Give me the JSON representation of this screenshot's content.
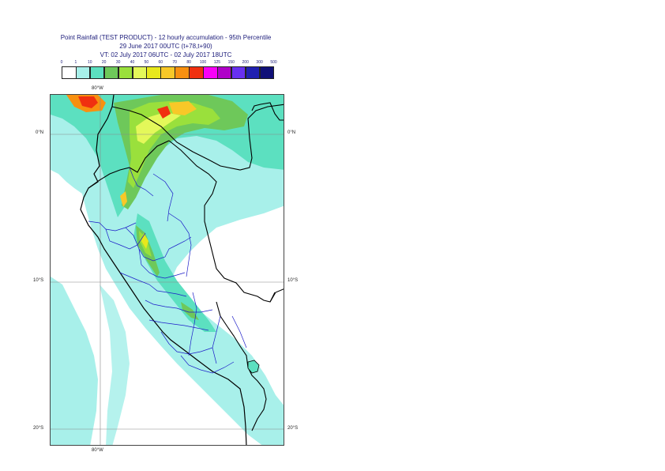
{
  "title": {
    "line1": "Point Rainfall (TEST PRODUCT) - 12 hourly accumulation - 95th Percentile",
    "line2": "29 June 2017 00UTC (t+78,t+90)",
    "line3": "VT: 02 July 2017 06UTC - 02 July 2017 18UTC"
  },
  "legend": {
    "ticks": [
      "0",
      "1",
      "10",
      "20",
      "30",
      "40",
      "50",
      "60",
      "70",
      "80",
      "100",
      "125",
      "150",
      "200",
      "300",
      "500"
    ],
    "colors": [
      "#ffffff",
      "#a8f0ea",
      "#5ce0c0",
      "#6ec85a",
      "#9ae03c",
      "#e4f85a",
      "#e8e81c",
      "#f8c828",
      "#f89010",
      "#f03010",
      "#f800f8",
      "#b000c8",
      "#6830f0",
      "#2020b0",
      "#101078"
    ]
  },
  "map": {
    "lon_labels": [
      "80°W",
      "80°W"
    ],
    "lat_labels_left": [
      "0°N",
      "10°S",
      "20°S"
    ],
    "lat_labels_right": [
      "0°N",
      "10°S",
      "20°S"
    ]
  }
}
